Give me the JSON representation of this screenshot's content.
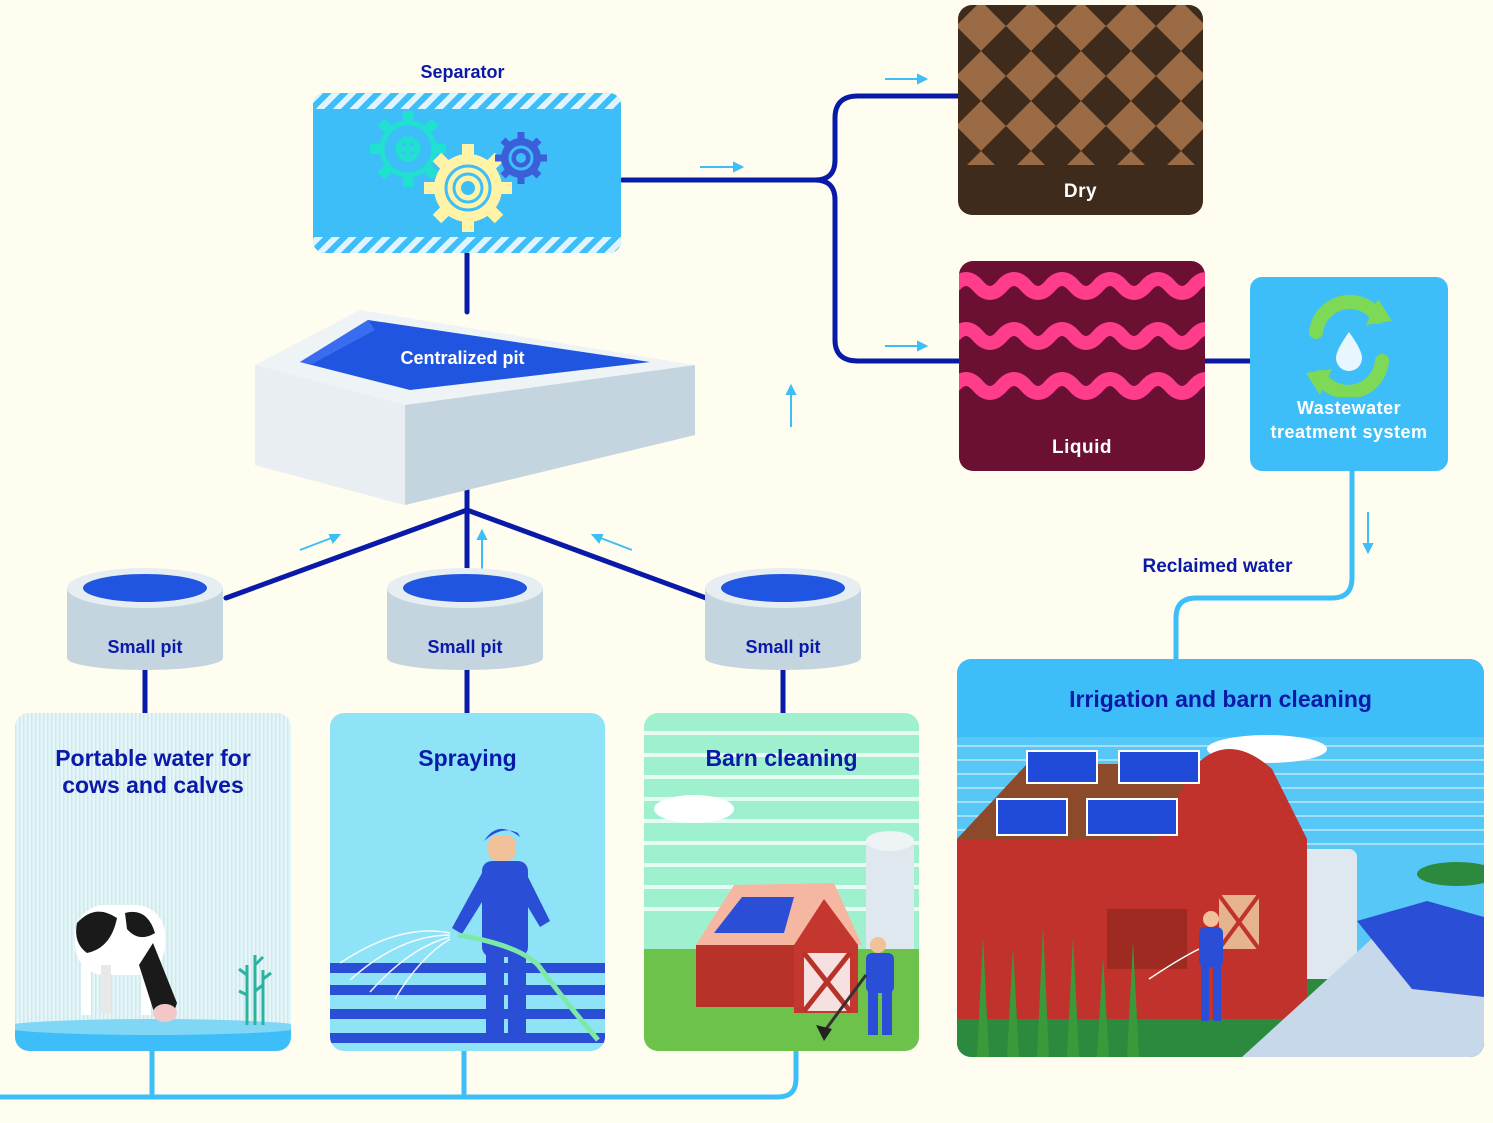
{
  "separator": {
    "label": "Separator"
  },
  "pit": {
    "label": "Centralized pit"
  },
  "small_pits": [
    {
      "label": "Small pit"
    },
    {
      "label": "Small pit"
    },
    {
      "label": "Small pit"
    }
  ],
  "outputs": {
    "dry": {
      "label": "Dry"
    },
    "liquid": {
      "label": "Liquid"
    }
  },
  "treatment": {
    "label_line1": "Wastewater",
    "label_line2": "treatment system"
  },
  "reclaimed": {
    "label": "Reclaimed water"
  },
  "uses": {
    "drinking": {
      "line1": "Portable water for",
      "line2": "cows and calves"
    },
    "spraying": {
      "label": "Spraying"
    },
    "barn": {
      "label": "Barn cleaning"
    },
    "irrigation": {
      "label": "Irrigation and barn cleaning"
    }
  },
  "colors": {
    "navy": "#0a1aa8",
    "light_blue": "#3ebef8",
    "pipe_light": "#3ebef8",
    "background": "#fffdf0",
    "dry": "#3e2b1c",
    "liquid": "#6b0f33"
  }
}
